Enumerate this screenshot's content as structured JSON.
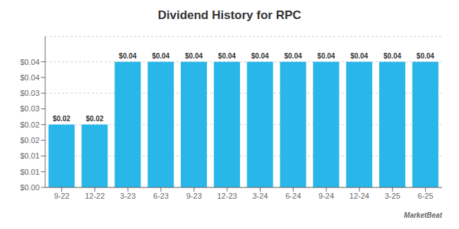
{
  "chart_data": {
    "type": "bar",
    "title": "Dividend History for RPC",
    "categories": [
      "9-22",
      "12-22",
      "3-23",
      "6-23",
      "9-23",
      "12-23",
      "3-24",
      "6-24",
      "9-24",
      "12-24",
      "3-25",
      "6-25"
    ],
    "values": [
      0.02,
      0.02,
      0.04,
      0.04,
      0.04,
      0.04,
      0.04,
      0.04,
      0.04,
      0.04,
      0.04,
      0.04
    ],
    "value_labels": [
      "$0.02",
      "$0.02",
      "$0.04",
      "$0.04",
      "$0.04",
      "$0.04",
      "$0.04",
      "$0.04",
      "$0.04",
      "$0.04",
      "$0.04",
      "$0.04"
    ],
    "data_labels": true,
    "color": "#29b6e8",
    "ylim": [
      0,
      0.048
    ],
    "yticks": [
      {
        "value": 0.0,
        "label": "$0.00"
      },
      {
        "value": 0.005,
        "label": "$0.01"
      },
      {
        "value": 0.01,
        "label": "$0.01"
      },
      {
        "value": 0.015,
        "label": "$0.02"
      },
      {
        "value": 0.02,
        "label": "$0.02"
      },
      {
        "value": 0.025,
        "label": "$0.03"
      },
      {
        "value": 0.03,
        "label": "$0.03"
      },
      {
        "value": 0.035,
        "label": "$0.04"
      },
      {
        "value": 0.04,
        "label": "$0.04"
      }
    ],
    "grid": true,
    "annotations": [
      "MarketBeat"
    ]
  }
}
